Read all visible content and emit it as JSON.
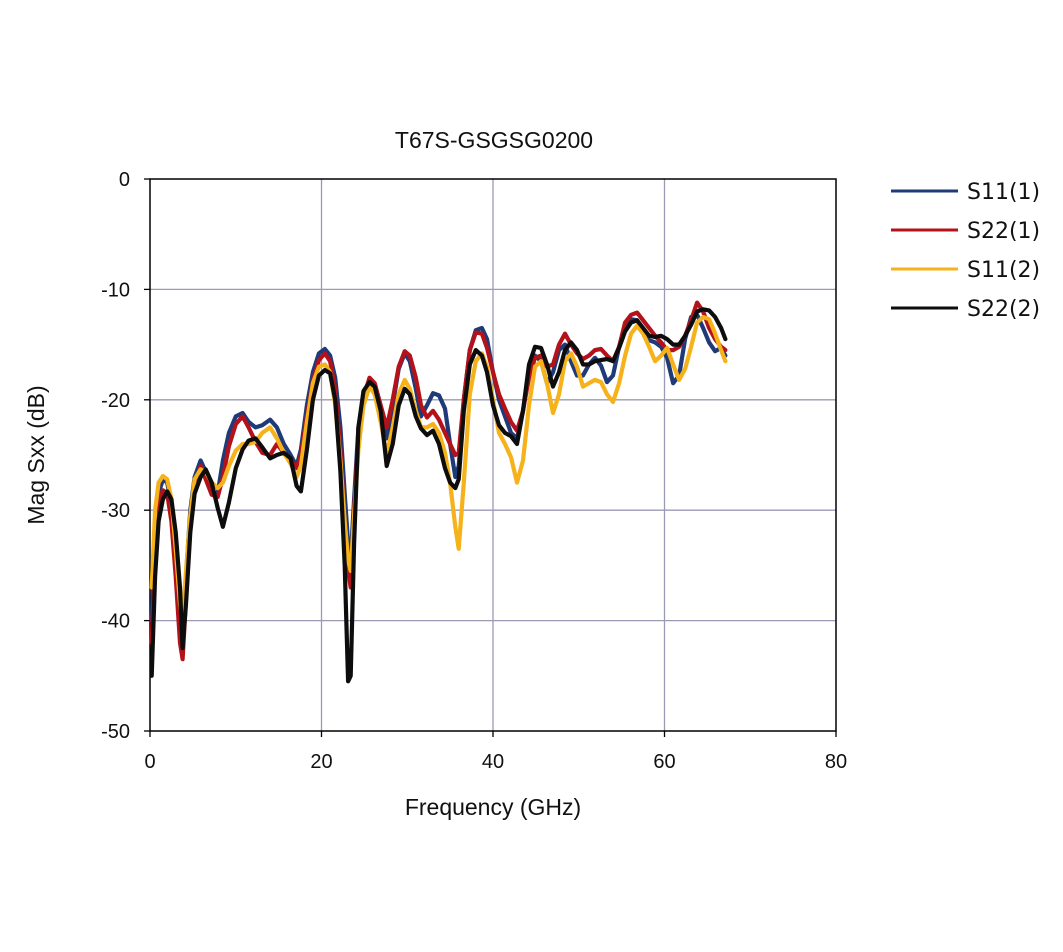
{
  "chart_data": {
    "type": "line",
    "title": "T67S-GSGSG0200",
    "xlabel": "Frequency (GHz)",
    "ylabel": "Mag Sxx (dB)",
    "xlim": [
      0,
      80
    ],
    "ylim": [
      -50,
      0
    ],
    "x_ticks": [
      0,
      20,
      40,
      60,
      80
    ],
    "y_ticks": [
      0,
      -10,
      -20,
      -30,
      -40,
      -50
    ],
    "grid": true,
    "legend_position": "right",
    "series": [
      {
        "name": "S11(1)",
        "color": "#1f3a78",
        "x": [
          0.2,
          0.6,
          1,
          1.5,
          2,
          2.5,
          3,
          3.5,
          3.8,
          4.2,
          4.7,
          5.2,
          5.9,
          6.5,
          7.2,
          7.9,
          8.5,
          9.2,
          10,
          10.8,
          11.5,
          12.3,
          13.1,
          14,
          14.8,
          15.6,
          16.4,
          17.1,
          17.6,
          18.3,
          19,
          19.7,
          20.4,
          21,
          21.6,
          22.2,
          22.7,
          23.1,
          23.4,
          23.8,
          24.3,
          24.9,
          25.6,
          26.2,
          26.9,
          27.6,
          28.3,
          29,
          29.7,
          30.3,
          31,
          31.6,
          32.3,
          33,
          33.7,
          34.4,
          35,
          35.6,
          36,
          36.6,
          37.3,
          38,
          38.7,
          39.3,
          40,
          40.7,
          41.4,
          42.1,
          42.8,
          43.5,
          44.2,
          44.9,
          45.6,
          46.3,
          47,
          47.7,
          48.4,
          49.1,
          49.8,
          50.5,
          51.2,
          51.9,
          52.6,
          53.3,
          54,
          54.7,
          55.4,
          56.1,
          56.8,
          57.5,
          58.2,
          58.9,
          59.6,
          60.3,
          61,
          61.7,
          62.4,
          63.1,
          63.8,
          64.5,
          65.2,
          65.9,
          66.6,
          67.1
        ],
        "y": [
          -40,
          -32,
          -28.5,
          -27.2,
          -27.5,
          -29.5,
          -34,
          -40,
          -42.5,
          -36,
          -30,
          -27,
          -25.5,
          -26.5,
          -28.5,
          -28.5,
          -25.5,
          -23,
          -21.5,
          -21.2,
          -22,
          -22.5,
          -22.3,
          -21.8,
          -22.5,
          -24,
          -25,
          -26,
          -24.5,
          -20.5,
          -17.5,
          -15.8,
          -15.4,
          -16,
          -18,
          -22.5,
          -28.5,
          -33,
          -34.5,
          -29,
          -22.5,
          -19.5,
          -18.2,
          -18.8,
          -21,
          -23.5,
          -20.5,
          -17.2,
          -15.8,
          -16.5,
          -19,
          -21.5,
          -20.5,
          -19.4,
          -19.6,
          -20.8,
          -24,
          -27,
          -26,
          -20,
          -15.5,
          -13.7,
          -13.5,
          -14.5,
          -17.5,
          -20,
          -21.5,
          -23,
          -23.5,
          -21,
          -17.5,
          -16,
          -16.5,
          -18.5,
          -17.5,
          -15.5,
          -15,
          -16.5,
          -17.8,
          -17.8,
          -16.8,
          -16.2,
          -16.9,
          -18.4,
          -17.8,
          -15.2,
          -13.3,
          -12.7,
          -12.8,
          -13.8,
          -14.6,
          -14.8,
          -15.2,
          -16.2,
          -18.5,
          -17.8,
          -14.5,
          -12.5,
          -12.3,
          -13.5,
          -14.8,
          -15.6,
          -15.3,
          -16
        ]
      },
      {
        "name": "S22(1)",
        "color": "#b3121b",
        "x": [
          0.2,
          0.6,
          1,
          1.5,
          2,
          2.5,
          3,
          3.5,
          3.8,
          4.2,
          4.7,
          5.2,
          5.9,
          6.5,
          7.2,
          7.9,
          8.5,
          9.2,
          10,
          10.8,
          11.5,
          12.3,
          13.1,
          14,
          14.8,
          15.6,
          16.4,
          17.1,
          17.6,
          18.3,
          19,
          19.7,
          20.4,
          21,
          21.6,
          22.2,
          22.7,
          23.1,
          23.4,
          23.8,
          24.3,
          24.9,
          25.6,
          26.2,
          26.9,
          27.6,
          28.3,
          29,
          29.7,
          30.3,
          31,
          31.6,
          32.3,
          33,
          33.7,
          34.4,
          35,
          35.6,
          36,
          36.6,
          37.3,
          38,
          38.7,
          39.3,
          40,
          40.7,
          41.4,
          42.1,
          42.8,
          43.5,
          44.2,
          44.9,
          45.6,
          46.3,
          47,
          47.7,
          48.4,
          49.1,
          49.8,
          50.5,
          51.2,
          51.9,
          52.6,
          53.3,
          54,
          54.7,
          55.4,
          56.1,
          56.8,
          57.5,
          58.2,
          58.9,
          59.6,
          60.3,
          61,
          61.7,
          62.4,
          63.1,
          63.8,
          64.5,
          65.2,
          65.9,
          66.6,
          67.1
        ],
        "y": [
          -42,
          -34,
          -29.5,
          -28.2,
          -28.5,
          -31,
          -36,
          -42,
          -43.5,
          -38,
          -31.5,
          -27.8,
          -26,
          -27.2,
          -28.6,
          -28.8,
          -27,
          -24.2,
          -22.2,
          -21.5,
          -22.5,
          -23.8,
          -24.8,
          -25,
          -24,
          -24.8,
          -25.5,
          -26.2,
          -25,
          -21.5,
          -18.3,
          -16.4,
          -15.8,
          -16.5,
          -19,
          -24.5,
          -31,
          -35.5,
          -37,
          -30,
          -23.2,
          -19.8,
          -18,
          -18.5,
          -20.5,
          -22.5,
          -20,
          -17,
          -15.6,
          -16,
          -18,
          -20.5,
          -21.6,
          -21,
          -21.8,
          -23,
          -24,
          -25,
          -24.8,
          -20,
          -15.5,
          -13.9,
          -14,
          -15.3,
          -17.5,
          -19.5,
          -20.8,
          -22,
          -22.8,
          -21,
          -18,
          -16.2,
          -16,
          -17,
          -16.8,
          -15,
          -14,
          -15,
          -15.8,
          -16.3,
          -16,
          -15.5,
          -15.4,
          -16,
          -16.5,
          -15.2,
          -13,
          -12.3,
          -12.1,
          -12.8,
          -13.5,
          -14.2,
          -14.8,
          -15.5,
          -15.5,
          -15.2,
          -14.2,
          -12.8,
          -11.2,
          -12,
          -13.5,
          -14.5,
          -15.2,
          -15.5
        ]
      },
      {
        "name": "S11(2)",
        "color": "#f6b21b",
        "x": [
          0.2,
          0.6,
          1,
          1.5,
          2,
          2.5,
          3,
          3.5,
          3.8,
          4.2,
          4.7,
          5.2,
          5.9,
          6.5,
          7.2,
          7.9,
          8.5,
          9.2,
          10,
          10.8,
          11.5,
          12.3,
          13.1,
          14,
          14.8,
          15.6,
          16.4,
          17.1,
          17.6,
          18.3,
          19,
          19.7,
          20.4,
          21,
          21.6,
          22.2,
          22.7,
          23.1,
          23.4,
          23.8,
          24.3,
          24.9,
          25.6,
          26.2,
          26.9,
          27.6,
          28.3,
          29,
          29.7,
          30.3,
          31,
          31.6,
          32.3,
          33,
          33.7,
          34.4,
          35,
          35.6,
          36,
          36.6,
          37.3,
          38,
          38.7,
          39.3,
          40,
          40.7,
          41.4,
          42.1,
          42.8,
          43.5,
          44.2,
          44.9,
          45.6,
          46.3,
          47,
          47.7,
          48.4,
          49.1,
          49.8,
          50.5,
          51.2,
          51.9,
          52.6,
          53.3,
          54,
          54.7,
          55.4,
          56.1,
          56.8,
          57.5,
          58.2,
          58.9,
          59.6,
          60.3,
          61,
          61.7,
          62.4,
          63.1,
          63.8,
          64.5,
          65.2,
          65.9,
          66.6,
          67.1
        ],
        "y": [
          -37,
          -30,
          -27.5,
          -26.9,
          -27.2,
          -29,
          -33.5,
          -38.5,
          -40,
          -35.5,
          -30.5,
          -27.2,
          -26.3,
          -26.5,
          -27.5,
          -28,
          -27.5,
          -26,
          -24.6,
          -24,
          -24,
          -23.8,
          -23,
          -22.5,
          -23.5,
          -24.8,
          -25.8,
          -27,
          -26,
          -22,
          -18.5,
          -17,
          -16.8,
          -17.5,
          -20.5,
          -25.5,
          -31,
          -34.5,
          -35.5,
          -30.5,
          -24.5,
          -20.5,
          -18.8,
          -19.5,
          -22,
          -25,
          -22.5,
          -19.5,
          -18.2,
          -19,
          -21,
          -22.5,
          -22.5,
          -22.2,
          -23,
          -24.8,
          -27.5,
          -31.5,
          -33.5,
          -27.5,
          -19.5,
          -16.5,
          -15.8,
          -17,
          -20,
          -23,
          -24,
          -25.2,
          -27.5,
          -25.5,
          -20.5,
          -17,
          -16.5,
          -18.5,
          -21.2,
          -19.5,
          -16.5,
          -15.8,
          -17,
          -18.8,
          -18.5,
          -18.2,
          -18.4,
          -19.5,
          -20.2,
          -18.5,
          -16,
          -14,
          -13.3,
          -14,
          -15.2,
          -16.5,
          -16,
          -15.3,
          -16.8,
          -18.2,
          -17.2,
          -15.2,
          -13,
          -12.5,
          -12.7,
          -14,
          -15.5,
          -16.5
        ]
      },
      {
        "name": "S22(2)",
        "color": "#0d0d0d",
        "x": [
          0.2,
          0.6,
          1,
          1.5,
          2,
          2.5,
          3,
          3.5,
          3.8,
          4.2,
          4.7,
          5.2,
          5.9,
          6.5,
          7.2,
          7.9,
          8.5,
          9.2,
          10,
          10.8,
          11.5,
          12.3,
          13.1,
          14,
          14.8,
          15.6,
          16.4,
          17.1,
          17.6,
          18.3,
          19,
          19.7,
          20.4,
          21,
          21.6,
          22.2,
          22.7,
          23.1,
          23.4,
          23.8,
          24.3,
          24.9,
          25.6,
          26.2,
          26.9,
          27.6,
          28.3,
          29,
          29.7,
          30.3,
          31,
          31.6,
          32.3,
          33,
          33.7,
          34.4,
          35,
          35.6,
          36,
          36.6,
          37.3,
          38,
          38.7,
          39.3,
          40,
          40.7,
          41.4,
          42.1,
          42.8,
          43.5,
          44.2,
          44.9,
          45.6,
          46.3,
          47,
          47.7,
          48.4,
          49.1,
          49.8,
          50.5,
          51.2,
          51.9,
          52.6,
          53.3,
          54,
          54.7,
          55.4,
          56.1,
          56.8,
          57.5,
          58.2,
          58.9,
          59.6,
          60.3,
          61,
          61.7,
          62.4,
          63.1,
          63.8,
          64.5,
          65.2,
          65.9,
          66.6,
          67.1
        ],
        "y": [
          -45,
          -36,
          -31,
          -29,
          -28.3,
          -29,
          -32,
          -37,
          -42.5,
          -38.5,
          -32,
          -28.5,
          -27,
          -26.3,
          -27.5,
          -29.8,
          -31.5,
          -29.3,
          -26.2,
          -24.5,
          -23.7,
          -23.5,
          -24.3,
          -25.3,
          -25,
          -24.8,
          -25.3,
          -27.8,
          -28.3,
          -24.5,
          -20,
          -17.8,
          -17.3,
          -17.6,
          -20,
          -26.5,
          -35,
          -45.5,
          -45,
          -33,
          -22.5,
          -19.2,
          -18.4,
          -18.8,
          -21,
          -26,
          -24,
          -20.5,
          -19,
          -19.5,
          -21.5,
          -22.6,
          -23.2,
          -22.8,
          -24,
          -26.2,
          -27.5,
          -28,
          -27.2,
          -21,
          -16.8,
          -15.5,
          -16,
          -17.5,
          -20.5,
          -22.3,
          -23,
          -23.3,
          -24,
          -21,
          -16.8,
          -15.2,
          -15.3,
          -16.8,
          -18.8,
          -17.5,
          -15.5,
          -14.8,
          -15.5,
          -16.8,
          -16.8,
          -16.5,
          -16.4,
          -16.3,
          -16.5,
          -15.3,
          -13.8,
          -13,
          -12.8,
          -13.5,
          -14.2,
          -14.3,
          -14.2,
          -14.5,
          -15,
          -15,
          -14.2,
          -13.2,
          -12,
          -11.8,
          -11.9,
          -12.5,
          -13.5,
          -14.5
        ]
      }
    ]
  }
}
